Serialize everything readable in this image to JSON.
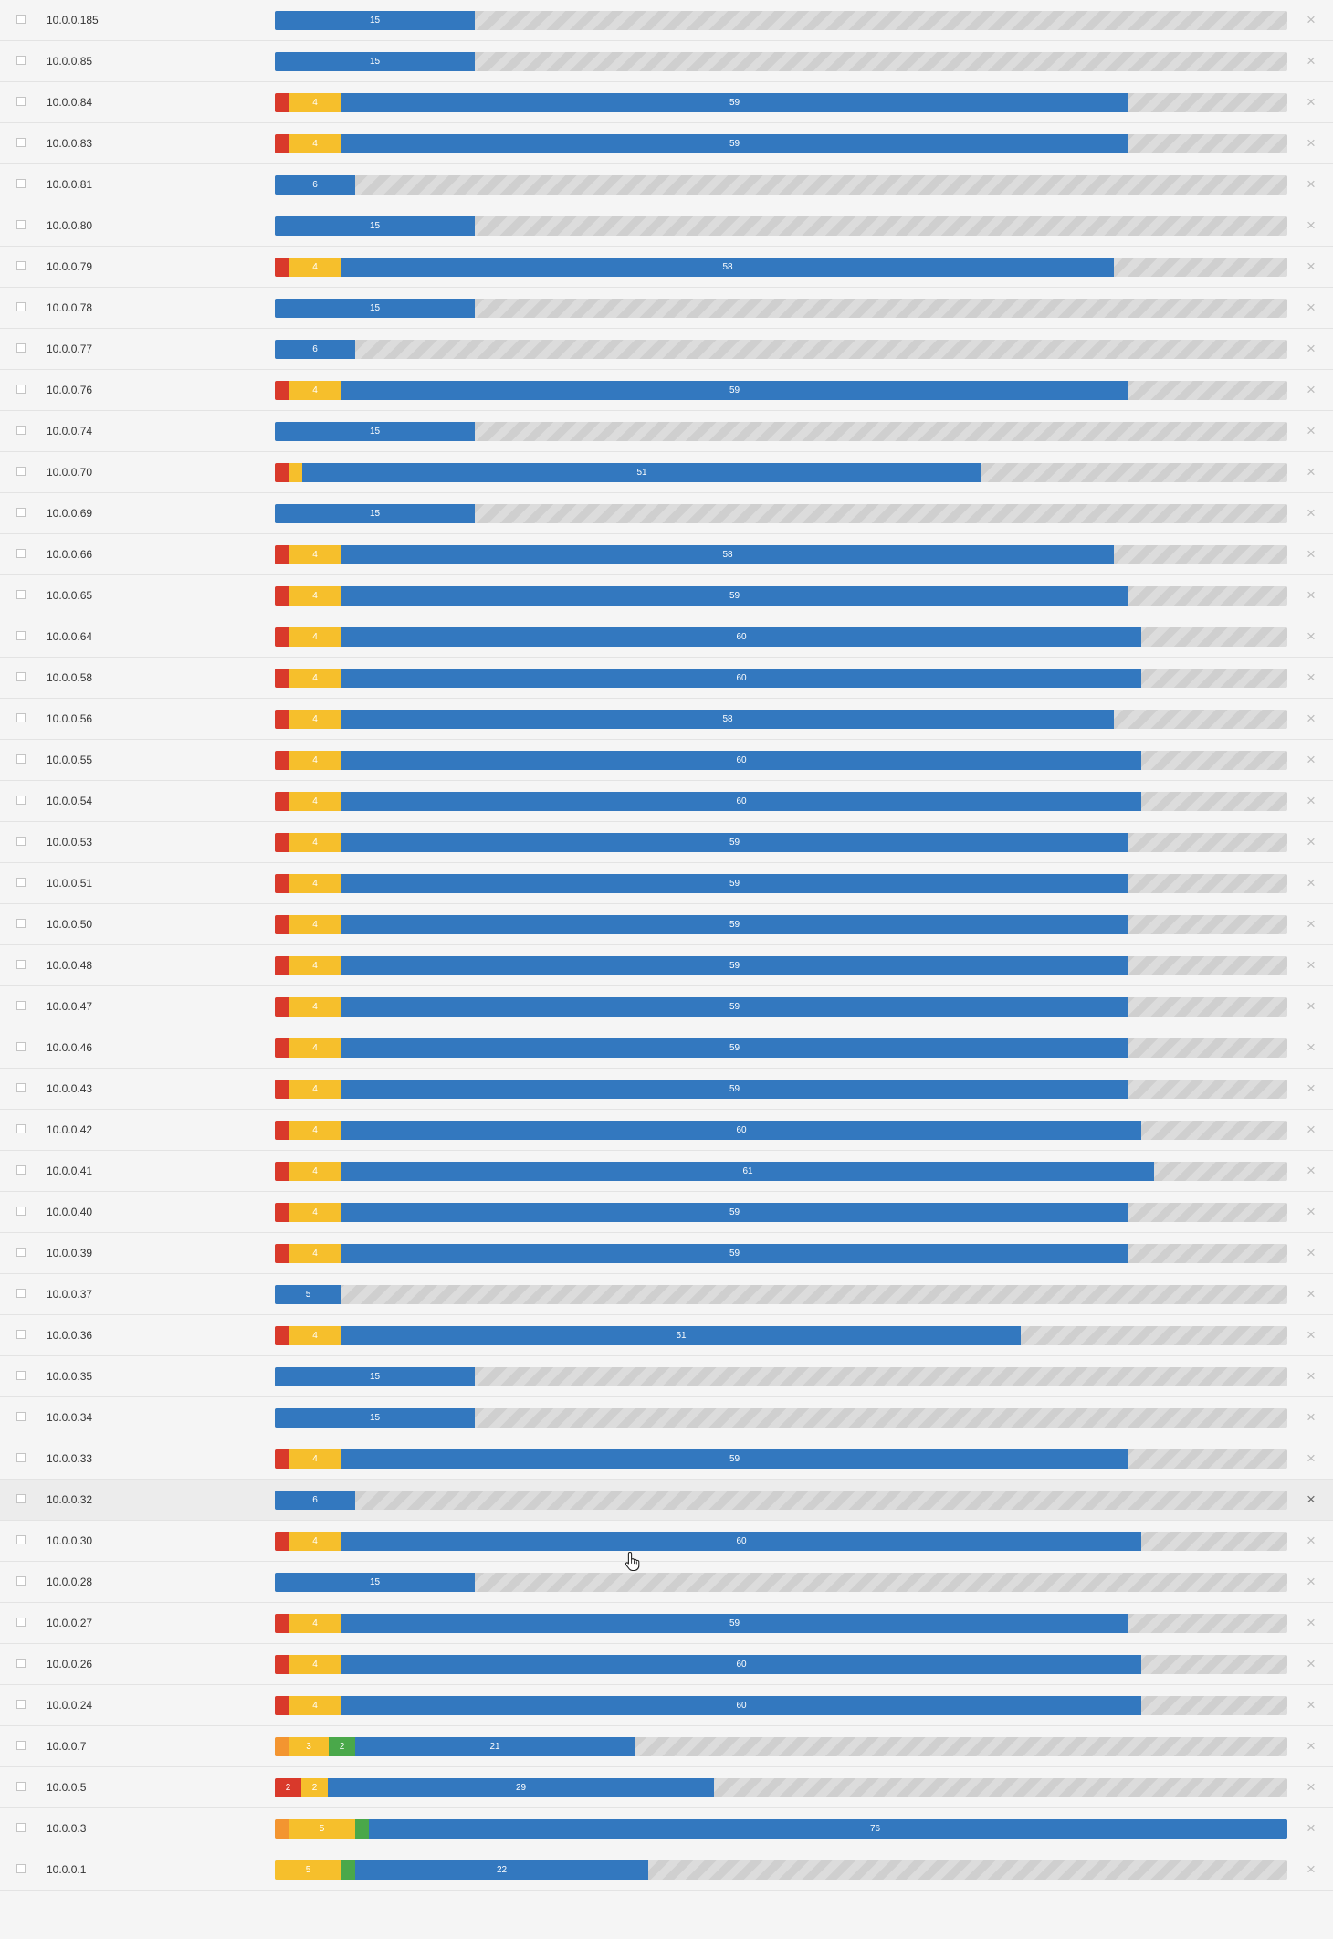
{
  "meta": {
    "bar_scale_max": 76
  },
  "colors": {
    "critical": "#d9392b",
    "high": "#f39530",
    "medium": "#f6bf2c",
    "low": "#4aa84a",
    "info": "#3378bf"
  },
  "icons": {
    "checkbox": "checkbox-icon",
    "remove": "close-icon",
    "cursor": "hand-pointer-icon"
  },
  "rows": [
    {
      "host": "10.0.0.185",
      "segments": [
        {
          "level": "info",
          "count": 15,
          "label": "15"
        }
      ]
    },
    {
      "host": "10.0.0.85",
      "segments": [
        {
          "level": "info",
          "count": 15,
          "label": "15"
        }
      ]
    },
    {
      "host": "10.0.0.84",
      "segments": [
        {
          "level": "critical",
          "count": 1,
          "label": ""
        },
        {
          "level": "medium",
          "count": 4,
          "label": "4"
        },
        {
          "level": "info",
          "count": 59,
          "label": "59"
        }
      ]
    },
    {
      "host": "10.0.0.83",
      "segments": [
        {
          "level": "critical",
          "count": 1,
          "label": ""
        },
        {
          "level": "medium",
          "count": 4,
          "label": "4"
        },
        {
          "level": "info",
          "count": 59,
          "label": "59"
        }
      ]
    },
    {
      "host": "10.0.0.81",
      "segments": [
        {
          "level": "info",
          "count": 6,
          "label": "6"
        }
      ]
    },
    {
      "host": "10.0.0.80",
      "segments": [
        {
          "level": "info",
          "count": 15,
          "label": "15"
        }
      ]
    },
    {
      "host": "10.0.0.79",
      "segments": [
        {
          "level": "critical",
          "count": 1,
          "label": ""
        },
        {
          "level": "medium",
          "count": 4,
          "label": "4"
        },
        {
          "level": "info",
          "count": 58,
          "label": "58"
        }
      ]
    },
    {
      "host": "10.0.0.78",
      "segments": [
        {
          "level": "info",
          "count": 15,
          "label": "15"
        }
      ]
    },
    {
      "host": "10.0.0.77",
      "segments": [
        {
          "level": "info",
          "count": 6,
          "label": "6"
        }
      ]
    },
    {
      "host": "10.0.0.76",
      "segments": [
        {
          "level": "critical",
          "count": 1,
          "label": ""
        },
        {
          "level": "medium",
          "count": 4,
          "label": "4"
        },
        {
          "level": "info",
          "count": 59,
          "label": "59"
        }
      ]
    },
    {
      "host": "10.0.0.74",
      "segments": [
        {
          "level": "info",
          "count": 15,
          "label": "15"
        }
      ]
    },
    {
      "host": "10.0.0.70",
      "segments": [
        {
          "level": "critical",
          "count": 1,
          "label": ""
        },
        {
          "level": "medium",
          "count": 1,
          "label": ""
        },
        {
          "level": "info",
          "count": 51,
          "label": "51"
        }
      ]
    },
    {
      "host": "10.0.0.69",
      "segments": [
        {
          "level": "info",
          "count": 15,
          "label": "15"
        }
      ]
    },
    {
      "host": "10.0.0.66",
      "segments": [
        {
          "level": "critical",
          "count": 1,
          "label": ""
        },
        {
          "level": "medium",
          "count": 4,
          "label": "4"
        },
        {
          "level": "info",
          "count": 58,
          "label": "58"
        }
      ]
    },
    {
      "host": "10.0.0.65",
      "segments": [
        {
          "level": "critical",
          "count": 1,
          "label": ""
        },
        {
          "level": "medium",
          "count": 4,
          "label": "4"
        },
        {
          "level": "info",
          "count": 59,
          "label": "59"
        }
      ]
    },
    {
      "host": "10.0.0.64",
      "segments": [
        {
          "level": "critical",
          "count": 1,
          "label": ""
        },
        {
          "level": "medium",
          "count": 4,
          "label": "4"
        },
        {
          "level": "info",
          "count": 60,
          "label": "60"
        }
      ]
    },
    {
      "host": "10.0.0.58",
      "segments": [
        {
          "level": "critical",
          "count": 1,
          "label": ""
        },
        {
          "level": "medium",
          "count": 4,
          "label": "4"
        },
        {
          "level": "info",
          "count": 60,
          "label": "60"
        }
      ]
    },
    {
      "host": "10.0.0.56",
      "segments": [
        {
          "level": "critical",
          "count": 1,
          "label": ""
        },
        {
          "level": "medium",
          "count": 4,
          "label": "4"
        },
        {
          "level": "info",
          "count": 58,
          "label": "58"
        }
      ]
    },
    {
      "host": "10.0.0.55",
      "segments": [
        {
          "level": "critical",
          "count": 1,
          "label": ""
        },
        {
          "level": "medium",
          "count": 4,
          "label": "4"
        },
        {
          "level": "info",
          "count": 60,
          "label": "60"
        }
      ]
    },
    {
      "host": "10.0.0.54",
      "segments": [
        {
          "level": "critical",
          "count": 1,
          "label": ""
        },
        {
          "level": "medium",
          "count": 4,
          "label": "4"
        },
        {
          "level": "info",
          "count": 60,
          "label": "60"
        }
      ]
    },
    {
      "host": "10.0.0.53",
      "segments": [
        {
          "level": "critical",
          "count": 1,
          "label": ""
        },
        {
          "level": "medium",
          "count": 4,
          "label": "4"
        },
        {
          "level": "info",
          "count": 59,
          "label": "59"
        }
      ]
    },
    {
      "host": "10.0.0.51",
      "segments": [
        {
          "level": "critical",
          "count": 1,
          "label": ""
        },
        {
          "level": "medium",
          "count": 4,
          "label": "4"
        },
        {
          "level": "info",
          "count": 59,
          "label": "59"
        }
      ]
    },
    {
      "host": "10.0.0.50",
      "segments": [
        {
          "level": "critical",
          "count": 1,
          "label": ""
        },
        {
          "level": "medium",
          "count": 4,
          "label": "4"
        },
        {
          "level": "info",
          "count": 59,
          "label": "59"
        }
      ]
    },
    {
      "host": "10.0.0.48",
      "segments": [
        {
          "level": "critical",
          "count": 1,
          "label": ""
        },
        {
          "level": "medium",
          "count": 4,
          "label": "4"
        },
        {
          "level": "info",
          "count": 59,
          "label": "59"
        }
      ]
    },
    {
      "host": "10.0.0.47",
      "segments": [
        {
          "level": "critical",
          "count": 1,
          "label": ""
        },
        {
          "level": "medium",
          "count": 4,
          "label": "4"
        },
        {
          "level": "info",
          "count": 59,
          "label": "59"
        }
      ]
    },
    {
      "host": "10.0.0.46",
      "segments": [
        {
          "level": "critical",
          "count": 1,
          "label": ""
        },
        {
          "level": "medium",
          "count": 4,
          "label": "4"
        },
        {
          "level": "info",
          "count": 59,
          "label": "59"
        }
      ]
    },
    {
      "host": "10.0.0.43",
      "segments": [
        {
          "level": "critical",
          "count": 1,
          "label": ""
        },
        {
          "level": "medium",
          "count": 4,
          "label": "4"
        },
        {
          "level": "info",
          "count": 59,
          "label": "59"
        }
      ]
    },
    {
      "host": "10.0.0.42",
      "segments": [
        {
          "level": "critical",
          "count": 1,
          "label": ""
        },
        {
          "level": "medium",
          "count": 4,
          "label": "4"
        },
        {
          "level": "info",
          "count": 60,
          "label": "60"
        }
      ]
    },
    {
      "host": "10.0.0.41",
      "segments": [
        {
          "level": "critical",
          "count": 1,
          "label": ""
        },
        {
          "level": "medium",
          "count": 4,
          "label": "4"
        },
        {
          "level": "info",
          "count": 61,
          "label": "61"
        }
      ]
    },
    {
      "host": "10.0.0.40",
      "segments": [
        {
          "level": "critical",
          "count": 1,
          "label": ""
        },
        {
          "level": "medium",
          "count": 4,
          "label": "4"
        },
        {
          "level": "info",
          "count": 59,
          "label": "59"
        }
      ]
    },
    {
      "host": "10.0.0.39",
      "segments": [
        {
          "level": "critical",
          "count": 1,
          "label": ""
        },
        {
          "level": "medium",
          "count": 4,
          "label": "4"
        },
        {
          "level": "info",
          "count": 59,
          "label": "59"
        }
      ]
    },
    {
      "host": "10.0.0.37",
      "segments": [
        {
          "level": "info",
          "count": 5,
          "label": "5"
        }
      ]
    },
    {
      "host": "10.0.0.36",
      "segments": [
        {
          "level": "critical",
          "count": 1,
          "label": ""
        },
        {
          "level": "medium",
          "count": 4,
          "label": "4"
        },
        {
          "level": "info",
          "count": 51,
          "label": "51"
        }
      ]
    },
    {
      "host": "10.0.0.35",
      "segments": [
        {
          "level": "info",
          "count": 15,
          "label": "15"
        }
      ]
    },
    {
      "host": "10.0.0.34",
      "segments": [
        {
          "level": "info",
          "count": 15,
          "label": "15"
        }
      ]
    },
    {
      "host": "10.0.0.33",
      "segments": [
        {
          "level": "critical",
          "count": 1,
          "label": ""
        },
        {
          "level": "medium",
          "count": 4,
          "label": "4"
        },
        {
          "level": "info",
          "count": 59,
          "label": "59"
        }
      ]
    },
    {
      "host": "10.0.0.32",
      "hover": true,
      "segments": [
        {
          "level": "info",
          "count": 6,
          "label": "6"
        }
      ]
    },
    {
      "host": "10.0.0.30",
      "segments": [
        {
          "level": "critical",
          "count": 1,
          "label": ""
        },
        {
          "level": "medium",
          "count": 4,
          "label": "4"
        },
        {
          "level": "info",
          "count": 60,
          "label": "60"
        }
      ]
    },
    {
      "host": "10.0.0.28",
      "segments": [
        {
          "level": "info",
          "count": 15,
          "label": "15"
        }
      ]
    },
    {
      "host": "10.0.0.27",
      "segments": [
        {
          "level": "critical",
          "count": 1,
          "label": ""
        },
        {
          "level": "medium",
          "count": 4,
          "label": "4"
        },
        {
          "level": "info",
          "count": 59,
          "label": "59"
        }
      ]
    },
    {
      "host": "10.0.0.26",
      "segments": [
        {
          "level": "critical",
          "count": 1,
          "label": ""
        },
        {
          "level": "medium",
          "count": 4,
          "label": "4"
        },
        {
          "level": "info",
          "count": 60,
          "label": "60"
        }
      ]
    },
    {
      "host": "10.0.0.24",
      "segments": [
        {
          "level": "critical",
          "count": 1,
          "label": ""
        },
        {
          "level": "medium",
          "count": 4,
          "label": "4"
        },
        {
          "level": "info",
          "count": 60,
          "label": "60"
        }
      ]
    },
    {
      "host": "10.0.0.7",
      "segments": [
        {
          "level": "high",
          "count": 1,
          "label": ""
        },
        {
          "level": "medium",
          "count": 3,
          "label": "3"
        },
        {
          "level": "low",
          "count": 2,
          "label": "2"
        },
        {
          "level": "info",
          "count": 21,
          "label": "21"
        }
      ]
    },
    {
      "host": "10.0.0.5",
      "segments": [
        {
          "level": "critical",
          "count": 2,
          "label": "2"
        },
        {
          "level": "medium",
          "count": 2,
          "label": "2"
        },
        {
          "level": "info",
          "count": 29,
          "label": "29"
        }
      ]
    },
    {
      "host": "10.0.0.3",
      "segments": [
        {
          "level": "high",
          "count": 1,
          "label": ""
        },
        {
          "level": "medium",
          "count": 5,
          "label": "5"
        },
        {
          "level": "low",
          "count": 1,
          "label": ""
        },
        {
          "level": "info",
          "count": 76,
          "label": "76"
        }
      ]
    },
    {
      "host": "10.0.0.1",
      "segments": [
        {
          "level": "medium",
          "count": 5,
          "label": "5"
        },
        {
          "level": "low",
          "count": 1,
          "label": ""
        },
        {
          "level": "info",
          "count": 22,
          "label": "22"
        }
      ]
    }
  ]
}
